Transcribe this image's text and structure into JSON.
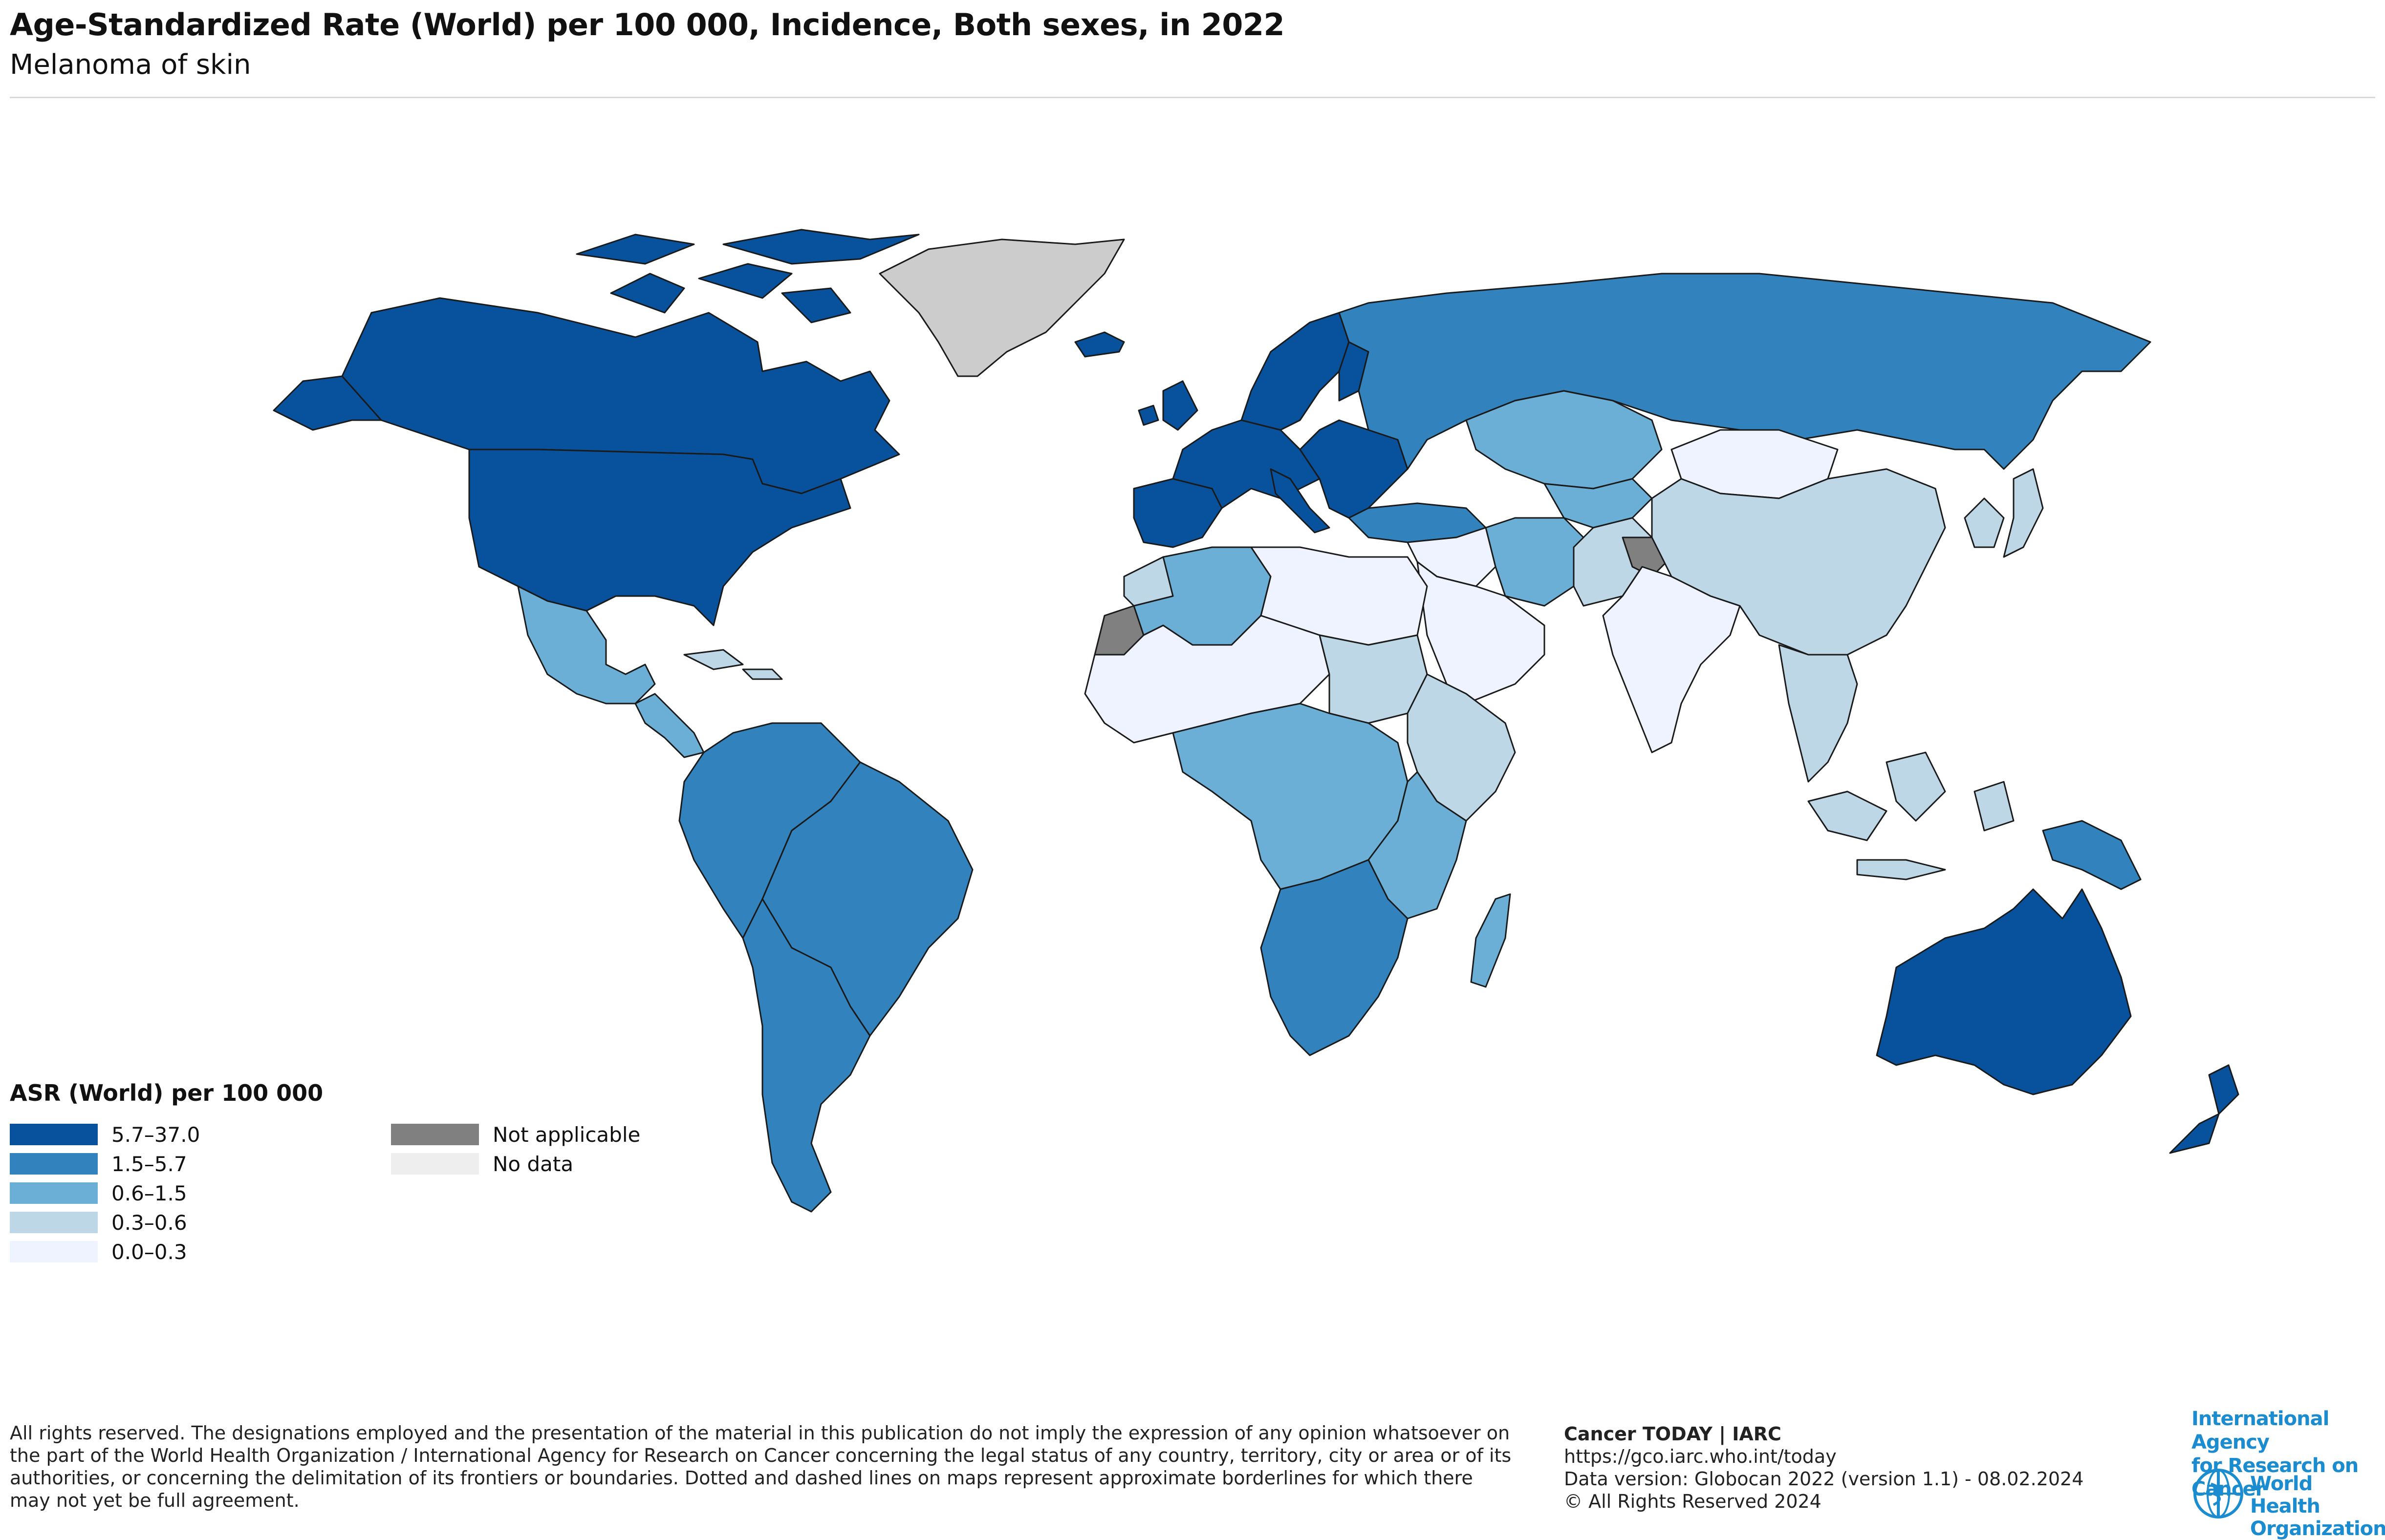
{
  "header": {
    "title": "Age-Standardized Rate (World) per 100 000, Incidence, Both sexes, in 2022",
    "subtitle": "Melanoma of skin"
  },
  "legend": {
    "title": "ASR (World) per 100 000",
    "bins": [
      {
        "label": "5.7–37.0",
        "color": "#08519c"
      },
      {
        "label": "1.5–5.7",
        "color": "#3182bd"
      },
      {
        "label": "0.6–1.5",
        "color": "#6baed6"
      },
      {
        "label": "0.3–0.6",
        "color": "#bdd7e7"
      },
      {
        "label": "0.0–0.3",
        "color": "#eff3ff"
      }
    ],
    "special": [
      {
        "label": "Not applicable",
        "color": "#808080"
      },
      {
        "label": "No data",
        "color": "#eeeeee"
      }
    ]
  },
  "colors": {
    "greenland": "#cccccc",
    "border": "#1a1a1a",
    "iarc_blue": "#1a8ccf"
  },
  "footer": {
    "disclaimer": "All rights reserved. The designations employed and the presentation of the material in this publication do not imply the expression of any opinion whatsoever on the part of the World Health Organization / International Agency for Research on Cancer concerning the legal status of any country, territory, city or area or of its authorities, or concerning the delimitation of its frontiers or boundaries. Dotted and dashed lines on maps represent approximate borderlines for which there may not yet be full agreement.",
    "source_title": "Cancer TODAY | IARC",
    "source_url": "https://gco.iarc.who.int/today",
    "data_version": "Data version: Globocan 2022 (version 1.1) - 08.02.2024",
    "copyright": "© All Rights Reserved 2024"
  },
  "logos": {
    "iarc_line1": "International Agency",
    "iarc_line2": "for Research on Cancer",
    "who_line1": "World Health",
    "who_line2": "Organization"
  },
  "map_regions": [
    {
      "name": "Canada",
      "bin": "5.7–37.0"
    },
    {
      "name": "United States",
      "bin": "5.7–37.0"
    },
    {
      "name": "Mexico",
      "bin": "0.6–1.5"
    },
    {
      "name": "Central America",
      "bin": "0.6–1.5"
    },
    {
      "name": "Caribbean",
      "bin": "0.3–0.6"
    },
    {
      "name": "Northern South America",
      "bin": "1.5–5.7"
    },
    {
      "name": "Brazil",
      "bin": "1.5–5.7"
    },
    {
      "name": "Southern Cone",
      "bin": "1.5–5.7"
    },
    {
      "name": "Greenland",
      "bin": "No data"
    },
    {
      "name": "Iceland",
      "bin": "5.7–37.0"
    },
    {
      "name": "Western Europe",
      "bin": "5.7–37.0"
    },
    {
      "name": "Scandinavia",
      "bin": "5.7–37.0"
    },
    {
      "name": "Iberia",
      "bin": "5.7–37.0"
    },
    {
      "name": "Italy",
      "bin": "5.7–37.0"
    },
    {
      "name": "Eastern Europe",
      "bin": "5.7–37.0"
    },
    {
      "name": "Russia",
      "bin": "1.5–5.7"
    },
    {
      "name": "Turkey",
      "bin": "1.5–5.7"
    },
    {
      "name": "Kazakhstan",
      "bin": "0.6–1.5"
    },
    {
      "name": "Central Asia",
      "bin": "0.6–1.5"
    },
    {
      "name": "Iran",
      "bin": "0.6–1.5"
    },
    {
      "name": "Middle East",
      "bin": "0.0–0.3"
    },
    {
      "name": "Arabian Peninsula",
      "bin": "0.0–0.3"
    },
    {
      "name": "Pakistan",
      "bin": "0.3–0.6"
    },
    {
      "name": "Kashmir",
      "bin": "Not applicable"
    },
    {
      "name": "India",
      "bin": "0.0–0.3"
    },
    {
      "name": "Mongolia",
      "bin": "0.0–0.3"
    },
    {
      "name": "China",
      "bin": "0.3–0.6"
    },
    {
      "name": "Korea & Japan",
      "bin": "0.3–0.6"
    },
    {
      "name": "Southeast Asia",
      "bin": "0.3–0.6"
    },
    {
      "name": "Indonesia",
      "bin": "0.3–0.6"
    },
    {
      "name": "Papua New Guinea",
      "bin": "1.5–5.7"
    },
    {
      "name": "Australia",
      "bin": "5.7–37.0"
    },
    {
      "name": "New Zealand",
      "bin": "5.7–37.0"
    },
    {
      "name": "Western Sahara",
      "bin": "Not applicable"
    },
    {
      "name": "Morocco",
      "bin": "0.3–0.6"
    },
    {
      "name": "Algeria",
      "bin": "0.6–1.5"
    },
    {
      "name": "Libya & Egypt",
      "bin": "0.0–0.3"
    },
    {
      "name": "Sahel",
      "bin": "0.0–0.3"
    },
    {
      "name": "Sudan",
      "bin": "0.3–0.6"
    },
    {
      "name": "Central Africa",
      "bin": "0.6–1.5"
    },
    {
      "name": "Horn of Africa",
      "bin": "0.3–0.6"
    },
    {
      "name": "East Africa",
      "bin": "0.6–1.5"
    },
    {
      "name": "Southern Africa",
      "bin": "1.5–5.7"
    },
    {
      "name": "Madagascar",
      "bin": "0.6–1.5"
    }
  ]
}
